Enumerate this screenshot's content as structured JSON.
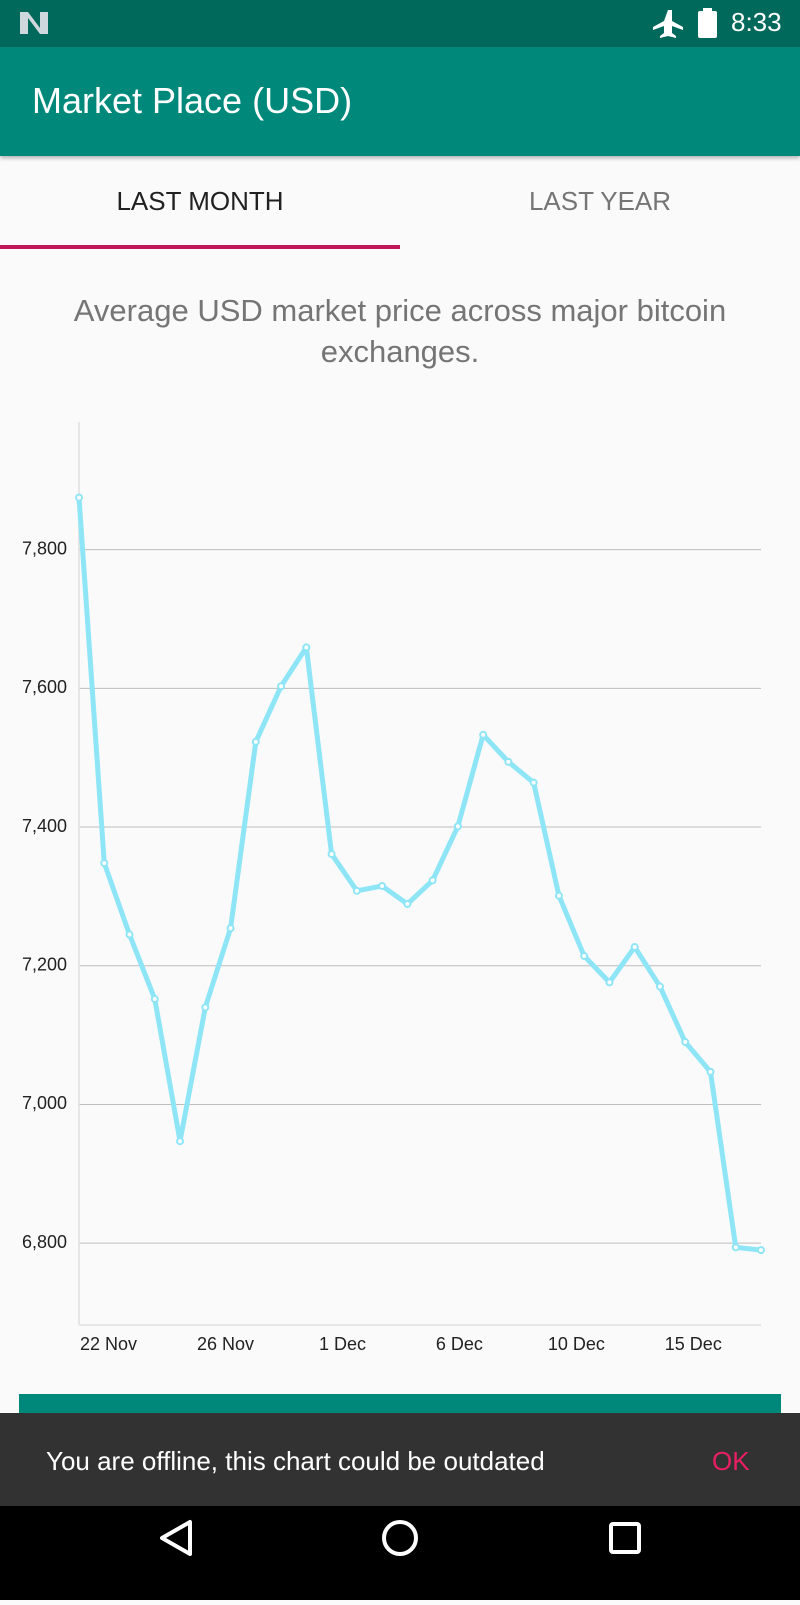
{
  "status_bar": {
    "time": "8:33"
  },
  "app_bar": {
    "title": "Market Place (USD)"
  },
  "tabs": [
    "LAST MONTH",
    "LAST YEAR"
  ],
  "chart_data": {
    "type": "line",
    "title": "Average USD market price across major bitcoin exchanges.",
    "x": [
      0,
      1,
      2,
      3,
      4,
      5,
      6,
      7,
      8,
      9,
      10,
      11,
      12,
      13,
      14,
      15,
      16,
      17,
      18,
      19,
      20,
      21,
      22,
      23,
      24,
      25,
      26,
      27
    ],
    "series": [
      {
        "color": "#8ee5f6",
        "values": [
          7875,
          7348,
          7245,
          7152,
          6947,
          7140,
          7254,
          7523,
          7603,
          7659,
          7361,
          7308,
          7315,
          7289,
          7323,
          7401,
          7533,
          7494,
          7464,
          7301,
          7214,
          7176,
          7227,
          7170,
          7090,
          7047,
          6794,
          6790
        ]
      }
    ],
    "xlim": [
      0,
      27
    ],
    "xticks": [
      {
        "value": 1.17,
        "label": "22 Nov"
      },
      {
        "value": 5.8,
        "label": "26 Nov"
      },
      {
        "value": 10.43,
        "label": "1 Dec"
      },
      {
        "value": 15.06,
        "label": "6 Dec"
      },
      {
        "value": 19.69,
        "label": "10 Dec"
      },
      {
        "value": 24.32,
        "label": "15 Dec"
      }
    ],
    "ylim": [
      6682,
      7984
    ],
    "yticks": [
      {
        "value": 6800,
        "label": "6,800"
      },
      {
        "value": 7000,
        "label": "7,000"
      },
      {
        "value": 7200,
        "label": "7,200"
      },
      {
        "value": 7400,
        "label": "7,400"
      },
      {
        "value": 7600,
        "label": "7,600"
      },
      {
        "value": 7800,
        "label": "7,800"
      }
    ],
    "grid": true
  },
  "snackbar": {
    "message": "You are offline, this chart could be outdated",
    "action": "OK"
  }
}
